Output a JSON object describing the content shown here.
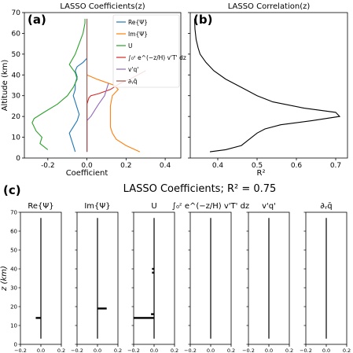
{
  "panels": {
    "a": "(a)",
    "b": "(b)",
    "c": "(c)"
  },
  "chart_data": [
    {
      "type": "line",
      "title": "LASSO Coefficients(z)",
      "xlabel": "Coefficient",
      "ylabel": "Altitude (km)",
      "xlim": [
        -0.32,
        0.48
      ],
      "ylim": [
        0,
        70
      ],
      "xticks": [
        "-0.2",
        "0.0",
        "0.2",
        "0.4"
      ],
      "yticks": [
        "0",
        "10",
        "20",
        "30",
        "40",
        "50",
        "60",
        "70"
      ],
      "legend_position": "upper-right",
      "series": [
        {
          "name": "Re{Ψ}",
          "color": "#1f77b4",
          "points": [
            [
              -0.06,
              3
            ],
            [
              -0.07,
              6
            ],
            [
              -0.08,
              9
            ],
            [
              -0.09,
              12
            ],
            [
              -0.07,
              15
            ],
            [
              -0.05,
              18
            ],
            [
              -0.04,
              21
            ],
            [
              -0.05,
              24
            ],
            [
              -0.06,
              27
            ],
            [
              -0.07,
              30
            ],
            [
              -0.06,
              33
            ],
            [
              -0.06,
              36
            ],
            [
              -0.05,
              39
            ],
            [
              -0.06,
              42
            ],
            [
              -0.05,
              44
            ],
            [
              -0.02,
              46
            ],
            [
              0.0,
              48
            ]
          ]
        },
        {
          "name": "Im{Ψ}",
          "color": "#ff7f0e",
          "points": [
            [
              0.27,
              3
            ],
            [
              0.2,
              6
            ],
            [
              0.15,
              9
            ],
            [
              0.13,
              12
            ],
            [
              0.12,
              15
            ],
            [
              0.12,
              20
            ],
            [
              0.12,
              25
            ],
            [
              0.13,
              30
            ],
            [
              0.16,
              33
            ],
            [
              0.14,
              35
            ],
            [
              0.05,
              38
            ],
            [
              0.0,
              40
            ]
          ]
        },
        {
          "name": "U",
          "color": "#2ca02c",
          "points": [
            [
              -0.2,
              4
            ],
            [
              -0.24,
              7
            ],
            [
              -0.23,
              10
            ],
            [
              -0.26,
              13
            ],
            [
              -0.28,
              17
            ],
            [
              -0.27,
              19
            ],
            [
              -0.22,
              22
            ],
            [
              -0.15,
              26
            ],
            [
              -0.1,
              30
            ],
            [
              -0.07,
              34
            ],
            [
              -0.05,
              38
            ],
            [
              -0.06,
              41
            ],
            [
              -0.09,
              45
            ],
            [
              -0.06,
              50
            ],
            [
              -0.04,
              55
            ],
            [
              -0.02,
              60
            ],
            [
              -0.01,
              65
            ],
            [
              -0.01,
              67
            ]
          ]
        },
        {
          "name": "∫₀ᶻ e^(−z/H) v'T' dz",
          "color": "#d62728",
          "points": [
            [
              0.0,
              3
            ],
            [
              0.0,
              26
            ],
            [
              0.01,
              29
            ],
            [
              0.02,
              30
            ],
            [
              0.06,
              31
            ],
            [
              0.12,
              33
            ],
            [
              0.17,
              36
            ],
            [
              0.22,
              38
            ],
            [
              0.26,
              40
            ],
            [
              0.3,
              42
            ]
          ]
        },
        {
          "name": "v'q'",
          "color": "#9467bd",
          "points": [
            [
              0.0,
              3
            ],
            [
              0.0,
              15
            ],
            [
              0.0,
              18
            ],
            [
              0.02,
              20
            ],
            [
              0.04,
              23
            ],
            [
              0.06,
              26
            ],
            [
              0.09,
              30
            ],
            [
              0.1,
              33
            ],
            [
              0.11,
              36
            ]
          ]
        },
        {
          "name": "∂ᵧq̄",
          "color": "#8c564b",
          "points": [
            [
              0.0,
              3
            ],
            [
              0.0,
              67
            ]
          ]
        }
      ]
    },
    {
      "type": "line",
      "title": "LASSO Correlation(z)",
      "xlabel": "R²",
      "ylabel": "",
      "xlim": [
        0.33,
        0.73
      ],
      "ylim": [
        0,
        70
      ],
      "xticks": [
        "0.4",
        "0.5",
        "0.6",
        "0.7"
      ],
      "yticks": [],
      "series": [
        {
          "name": "",
          "color": "#000000",
          "points": [
            [
              0.38,
              3
            ],
            [
              0.42,
              4
            ],
            [
              0.46,
              6
            ],
            [
              0.48,
              9
            ],
            [
              0.5,
              12
            ],
            [
              0.52,
              14
            ],
            [
              0.56,
              16
            ],
            [
              0.64,
              18
            ],
            [
              0.71,
              20
            ],
            [
              0.7,
              22
            ],
            [
              0.62,
              24
            ],
            [
              0.54,
              27
            ],
            [
              0.5,
              30
            ],
            [
              0.46,
              34
            ],
            [
              0.42,
              38
            ],
            [
              0.39,
              42
            ],
            [
              0.37,
              46
            ],
            [
              0.355,
              50
            ],
            [
              0.35,
              53
            ],
            [
              0.345,
              57
            ],
            [
              0.342,
              62
            ],
            [
              0.341,
              67
            ]
          ]
        }
      ]
    },
    {
      "type": "bar",
      "title": "LASSO Coefficients; R² = 0.75",
      "ylabel": "z (km)",
      "xlim": [
        -0.2,
        0.2
      ],
      "ylim": [
        0,
        70
      ],
      "xticks": [
        "−0.2",
        "0.0",
        "0.2"
      ],
      "yticks": [
        "0",
        "10",
        "20",
        "30",
        "40",
        "50",
        "60",
        "70"
      ],
      "subplots": [
        {
          "title": "Re{Ψ}",
          "bars": [
            [
              14,
              -0.05
            ]
          ]
        },
        {
          "title": "Im{Ψ}",
          "bars": [
            [
              19,
              0.09
            ]
          ]
        },
        {
          "title": "U",
          "bars": [
            [
              14,
              -0.2
            ],
            [
              16,
              -0.03
            ],
            [
              38,
              -0.02
            ],
            [
              40,
              -0.02
            ]
          ]
        },
        {
          "title": "∫₀ᶻ e^(−z/H) v'T' dz",
          "bars": []
        },
        {
          "title": "v'q'",
          "bars": []
        },
        {
          "title": "∂ᵧq̄",
          "bars": []
        }
      ],
      "line_range": [
        3,
        67
      ]
    }
  ]
}
